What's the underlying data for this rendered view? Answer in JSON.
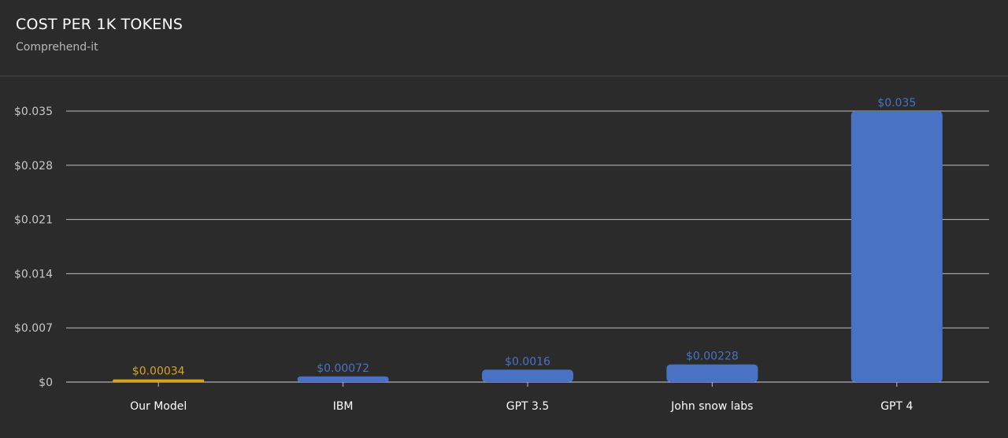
{
  "header": {
    "title": "COST PER 1K TOKENS",
    "subtitle": "Comprehend-it"
  },
  "chart_data": {
    "type": "bar",
    "title": "COST PER 1K TOKENS",
    "subtitle": "Comprehend-it",
    "categories": [
      "Our Model",
      "IBM",
      "GPT 3.5",
      "John snow labs",
      "GPT 4"
    ],
    "values": [
      0.00034,
      0.00072,
      0.0016,
      0.00228,
      0.035
    ],
    "value_labels": [
      "$0.00034",
      "$0.00072",
      "$0.0016",
      "$0.00228",
      "$0.035"
    ],
    "y_ticks": [
      0,
      0.007,
      0.014,
      0.021,
      0.028,
      0.035
    ],
    "y_tick_labels": [
      "$0",
      "$0.007",
      "$0.014",
      "$0.021",
      "$0.028",
      "$0.035"
    ],
    "ylim": [
      0,
      0.035
    ],
    "xlabel": "",
    "ylabel": "",
    "grid": true,
    "legend": "none",
    "colors": {
      "highlight": "#d6a229",
      "default": "#4a72c4",
      "highlight_label": "#d6a229",
      "default_label": "#4a72c4"
    },
    "highlight_index": 0
  }
}
